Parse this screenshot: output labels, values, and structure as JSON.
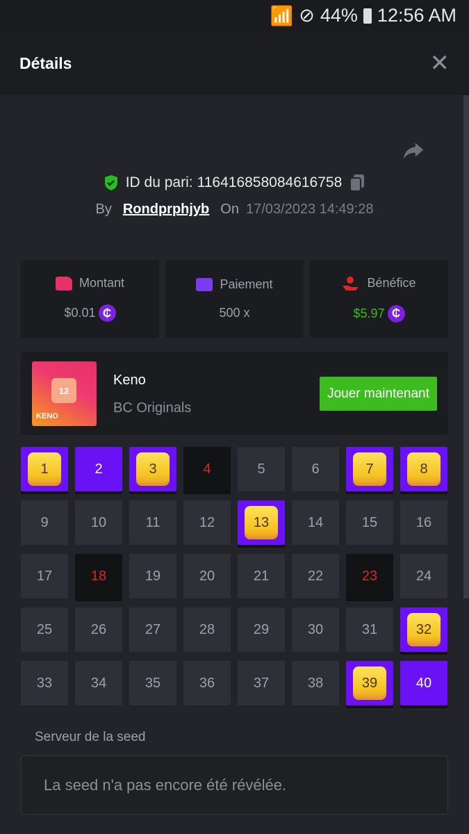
{
  "status_bar": {
    "battery": "44%",
    "time": "12:56 AM"
  },
  "header": {
    "title": "Détails"
  },
  "bet": {
    "id_label": "ID du pari:",
    "id": "116416858084616758",
    "by_label": "By",
    "user": "Rondprphjyb",
    "on_label": "On",
    "date": "17/03/2023 14:49:28"
  },
  "stats": [
    {
      "label": "Montant",
      "value": "$0.01",
      "icon": "money-bag-icon",
      "color": "#e8306b",
      "coin": "₵"
    },
    {
      "label": "Paiement",
      "value": "500 x",
      "icon": "card-icon",
      "color": "#7a3cf0"
    },
    {
      "label": "Bénéfice",
      "value": "$5.97",
      "icon": "hand-user-icon",
      "color": "#e02525",
      "value_color": "#3cbc1e",
      "coin": "₵"
    }
  ],
  "game": {
    "name": "Keno",
    "provider": "BC Originals",
    "thumb_label": "KENO",
    "thumb_number": "12",
    "play_label": "Jouer maintenant"
  },
  "keno": {
    "picked_hits": [
      1,
      3,
      7,
      8,
      13,
      32,
      39
    ],
    "picked_misses": [
      2,
      40
    ],
    "drawn_not_picked": [
      4,
      18,
      23
    ]
  },
  "seed": {
    "label": "Serveur de la seed",
    "value": "La seed n'a pas encore été révélée."
  }
}
